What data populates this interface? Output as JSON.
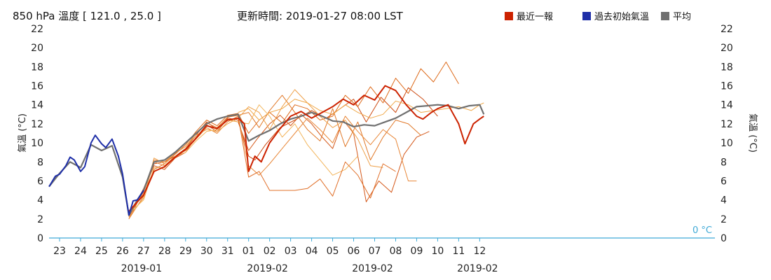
{
  "title": "850 hPa 溫度 [ 121.0 , 25.0 ]",
  "update_time": "更新時間: 2019-01-27 08:00 LST",
  "legend": [
    {
      "label": "最近一報",
      "color": "#cc2200"
    },
    {
      "label": "過去初始氣溫",
      "color": "#1f2fa8"
    },
    {
      "label": "平均",
      "color": "#707070"
    }
  ],
  "colors": {
    "axis": "#3fa9d6",
    "member_dark": "#cc4a12",
    "member_light": "#f0a848"
  },
  "chart_data": {
    "type": "line",
    "ylabel": "氣溫 (°C)",
    "ylim": [
      0,
      22
    ],
    "y_ticks": [
      0,
      2,
      4,
      6,
      8,
      10,
      12,
      14,
      16,
      18,
      20,
      22
    ],
    "xlim": [
      22.5,
      54.2
    ],
    "x_ticks": [
      {
        "x": 23,
        "label": "23"
      },
      {
        "x": 24,
        "label": "24"
      },
      {
        "x": 25,
        "label": "25"
      },
      {
        "x": 26,
        "label": "26"
      },
      {
        "x": 27,
        "label": "27"
      },
      {
        "x": 28,
        "label": "28"
      },
      {
        "x": 29,
        "label": "29"
      },
      {
        "x": 30,
        "label": "30"
      },
      {
        "x": 31,
        "label": "31"
      },
      {
        "x": 32,
        "label": "01"
      },
      {
        "x": 33,
        "label": "02"
      },
      {
        "x": 34,
        "label": "03"
      },
      {
        "x": 35,
        "label": "04"
      },
      {
        "x": 36,
        "label": "05"
      },
      {
        "x": 37,
        "label": "06"
      },
      {
        "x": 38,
        "label": "07"
      },
      {
        "x": 39,
        "label": "08"
      },
      {
        "x": 40,
        "label": "09"
      },
      {
        "x": 41,
        "label": "10"
      },
      {
        "x": 42,
        "label": "11"
      },
      {
        "x": 43,
        "label": "12"
      }
    ],
    "month_labels": [
      {
        "x": 26.9,
        "label": "2019-01"
      },
      {
        "x": 32.9,
        "label": "2019-02"
      },
      {
        "x": 37.9,
        "label": "2019-02"
      },
      {
        "x": 42.9,
        "label": "2019-02"
      }
    ],
    "zero_label": "0 °C",
    "series": [
      {
        "name": "過去初始氣溫",
        "color": "#1f2fa8",
        "x": [
          22.5,
          22.8,
          23.0,
          23.3,
          23.5,
          23.7,
          24.0,
          24.2,
          24.5,
          24.7,
          25.0,
          25.2,
          25.5,
          25.8,
          26.0,
          26.3,
          26.5,
          26.7,
          27.0
        ],
        "y": [
          5.4,
          6.5,
          6.7,
          7.6,
          8.5,
          8.2,
          7.0,
          7.5,
          10.0,
          10.8,
          9.9,
          9.5,
          10.4,
          8.6,
          6.7,
          2.4,
          3.9,
          4.0,
          5.0
        ]
      },
      {
        "name": "平均",
        "color": "#707070",
        "x": [
          22.5,
          23.0,
          23.5,
          24.0,
          24.5,
          25.0,
          25.5,
          26.0,
          26.3,
          26.7,
          27.0,
          27.5,
          28.0,
          28.5,
          29.0,
          29.5,
          30.0,
          30.5,
          31.0,
          31.5,
          32.0,
          32.5,
          33.0,
          33.5,
          34.0,
          34.5,
          35.0,
          35.5,
          36.0,
          36.5,
          37.0,
          37.5,
          38.0,
          38.5,
          39.0,
          39.5,
          40.0,
          40.5,
          41.0,
          41.5,
          42.0,
          42.5,
          43.0,
          43.2
        ],
        "y": [
          5.4,
          6.8,
          8.0,
          7.4,
          9.8,
          9.2,
          9.7,
          6.4,
          2.4,
          4.0,
          5.0,
          8.0,
          8.2,
          9.0,
          10.0,
          11.0,
          12.0,
          12.5,
          12.8,
          13.0,
          10.2,
          10.8,
          11.3,
          12.0,
          12.5,
          12.8,
          13.2,
          12.8,
          12.3,
          12.2,
          11.7,
          11.9,
          11.8,
          12.2,
          12.6,
          13.2,
          13.8,
          13.9,
          14.0,
          13.9,
          13.6,
          13.9,
          14.0,
          13.0
        ]
      },
      {
        "name": "最近一報",
        "color": "#cc2200",
        "x": [
          26.3,
          26.7,
          27.0,
          27.5,
          28.0,
          28.5,
          29.0,
          29.5,
          30.0,
          30.5,
          31.0,
          31.5,
          31.8,
          32.0,
          32.3,
          32.6,
          33.0,
          33.5,
          34.0,
          34.5,
          35.0,
          35.5,
          36.0,
          36.5,
          37.0,
          37.5,
          38.0,
          38.5,
          39.0,
          39.5,
          40.0,
          40.3,
          40.7,
          41.0,
          41.5,
          42.0,
          42.3,
          42.7,
          43.0,
          43.2
        ],
        "y": [
          2.8,
          3.8,
          4.5,
          7.0,
          7.5,
          8.5,
          9.3,
          10.5,
          11.8,
          11.5,
          12.4,
          12.6,
          12.0,
          7.0,
          8.6,
          8.0,
          10.0,
          11.5,
          12.8,
          13.3,
          12.6,
          13.2,
          13.8,
          14.6,
          14.0,
          15.0,
          14.5,
          16.0,
          15.5,
          14.0,
          12.8,
          12.5,
          13.2,
          13.6,
          14.0,
          12.0,
          9.9,
          12.0,
          12.5,
          12.8
        ]
      },
      {
        "name": "",
        "color": "#cc4a12",
        "x": [
          26.3,
          27.0,
          27.5,
          28.0,
          28.5,
          29.0,
          29.5,
          30.0,
          30.5,
          31.0,
          31.5,
          32.0,
          32.3,
          32.8,
          33.5,
          34.2,
          35.0,
          35.7,
          36.3,
          37.0,
          37.6,
          38.3,
          39.0,
          39.6,
          40.3,
          41.0
        ],
        "y": [
          2.2,
          5.2,
          7.8,
          8.0,
          8.6,
          9.4,
          10.8,
          12.2,
          11.4,
          12.6,
          12.4,
          8.6,
          8.2,
          9.8,
          11.6,
          12.4,
          13.4,
          12.6,
          13.5,
          14.6,
          12.2,
          14.8,
          13.2,
          15.8,
          14.6,
          12.8
        ]
      },
      {
        "name": "",
        "color": "#dd6a1a",
        "x": [
          26.3,
          27.0,
          27.5,
          28.0,
          28.5,
          29.0,
          29.5,
          30.0,
          30.5,
          31.0,
          31.5,
          32.0,
          32.5,
          33.0,
          33.6,
          34.2,
          34.8,
          35.4,
          36.0,
          36.6,
          37.2,
          37.8,
          38.4,
          39.0,
          39.6,
          40.2,
          40.8,
          41.4,
          42.0
        ],
        "y": [
          2.6,
          4.6,
          7.2,
          7.8,
          8.8,
          9.8,
          11.2,
          12.4,
          11.8,
          12.9,
          13.1,
          11.0,
          12.4,
          13.2,
          12.1,
          14.0,
          13.6,
          12.4,
          12.8,
          15.0,
          13.8,
          15.9,
          14.2,
          16.8,
          15.2,
          17.8,
          16.4,
          18.5,
          16.2
        ]
      },
      {
        "name": "",
        "color": "#d4581a",
        "x": [
          26.3,
          27.0,
          27.5,
          28.0,
          28.5,
          29.0,
          29.5,
          30.0,
          30.5,
          31.0,
          31.5,
          32.0,
          32.4,
          33.0,
          33.5,
          34.0,
          34.5,
          35.0,
          35.5,
          36.0,
          36.5,
          37.0,
          37.6,
          38.2,
          38.8,
          39.4,
          40.0,
          40.6
        ],
        "y": [
          2.0,
          5.0,
          7.6,
          7.2,
          8.4,
          9.0,
          10.6,
          11.9,
          11.2,
          12.5,
          12.2,
          9.2,
          10.4,
          12.0,
          12.9,
          11.8,
          13.0,
          12.0,
          10.6,
          9.4,
          12.4,
          11.0,
          3.8,
          6.0,
          4.8,
          8.8,
          10.6,
          11.2
        ]
      },
      {
        "name": "",
        "color": "#e07828",
        "x": [
          26.3,
          27.0,
          27.5,
          28.0,
          28.5,
          29.0,
          29.5,
          30.0,
          30.5,
          31.0,
          31.5,
          32.0,
          32.5,
          33.0,
          33.6,
          34.2,
          34.8,
          35.4,
          36.0,
          36.6,
          37.2,
          37.8,
          38.4,
          39.0,
          39.6,
          40.2
        ],
        "y": [
          2.4,
          4.8,
          8.2,
          8.0,
          8.9,
          9.6,
          11.0,
          12.1,
          11.6,
          12.7,
          12.9,
          13.2,
          11.6,
          13.4,
          15.0,
          13.2,
          11.4,
          10.2,
          13.6,
          9.6,
          12.2,
          8.2,
          10.6,
          12.4,
          12.0,
          10.8
        ]
      },
      {
        "name": "",
        "color": "#e8883a",
        "x": [
          26.3,
          27.0,
          27.5,
          28.0,
          28.5,
          29.0,
          29.5,
          30.0,
          30.5,
          31.0,
          31.5,
          32.0,
          32.5,
          33.0,
          33.6,
          34.2,
          34.8,
          35.4,
          36.0,
          36.6,
          37.2,
          37.8,
          38.4,
          39.0,
          39.6,
          40.0
        ],
        "y": [
          2.0,
          4.4,
          8.0,
          7.6,
          8.6,
          9.2,
          10.4,
          11.6,
          11.0,
          12.2,
          12.8,
          7.6,
          6.6,
          7.8,
          9.4,
          11.0,
          12.6,
          11.4,
          10.0,
          12.8,
          11.2,
          9.8,
          11.4,
          10.4,
          6.0,
          6.0
        ]
      },
      {
        "name": "",
        "color": "#eea048",
        "x": [
          26.3,
          27.0,
          27.5,
          28.0,
          28.5,
          29.0,
          29.5,
          30.0,
          30.5,
          31.0,
          31.5,
          32.0,
          32.5,
          33.0,
          33.6,
          34.2,
          34.8,
          35.4,
          36.0,
          36.6,
          37.2,
          37.8,
          38.4
        ],
        "y": [
          2.2,
          4.2,
          8.4,
          7.8,
          9.0,
          9.6,
          10.8,
          11.4,
          11.2,
          12.0,
          12.6,
          13.8,
          13.2,
          11.4,
          13.8,
          15.6,
          14.2,
          12.8,
          11.6,
          12.4,
          10.4,
          7.6,
          7.4
        ]
      },
      {
        "name": "",
        "color": "#f2b45a",
        "x": [
          26.3,
          27.0,
          27.5,
          28.0,
          28.5,
          29.0,
          29.5,
          30.0,
          30.5,
          31.0,
          31.5,
          32.0,
          32.5,
          33.0,
          33.6,
          34.2,
          34.8,
          35.4,
          36.0,
          36.6,
          37.2
        ],
        "y": [
          2.6,
          4.0,
          7.4,
          7.4,
          8.6,
          9.0,
          10.2,
          11.2,
          11.4,
          12.4,
          12.2,
          12.0,
          14.0,
          12.8,
          10.6,
          12.0,
          9.8,
          8.2,
          6.6,
          7.2,
          8.6
        ]
      },
      {
        "name": "",
        "color": "#e0702a",
        "x": [
          31.5,
          32.0,
          32.5,
          33.0,
          33.6,
          34.2,
          34.8,
          35.4,
          36.0,
          36.6,
          37.2,
          37.8,
          38.4,
          39.0
        ],
        "y": [
          12.8,
          6.4,
          7.0,
          5.0,
          5.0,
          5.0,
          5.2,
          6.2,
          4.4,
          8.0,
          6.6,
          4.2,
          7.8,
          7.0
        ]
      },
      {
        "name": "",
        "color": "#f0a848",
        "x": [
          31.5,
          32.0,
          32.5,
          33.0,
          33.6,
          34.2,
          34.8,
          35.4,
          36.0,
          36.6,
          37.2,
          37.8,
          38.4,
          39.0,
          39.6,
          40.2,
          40.8,
          41.4,
          42.0,
          42.6,
          43.0,
          43.2
        ],
        "y": [
          13.2,
          13.6,
          12.4,
          13.2,
          13.6,
          14.6,
          14.2,
          13.4,
          13.0,
          14.0,
          13.2,
          12.6,
          13.0,
          14.4,
          14.0,
          13.2,
          13.4,
          13.6,
          13.8,
          13.4,
          14.0,
          14.2
        ]
      }
    ]
  }
}
